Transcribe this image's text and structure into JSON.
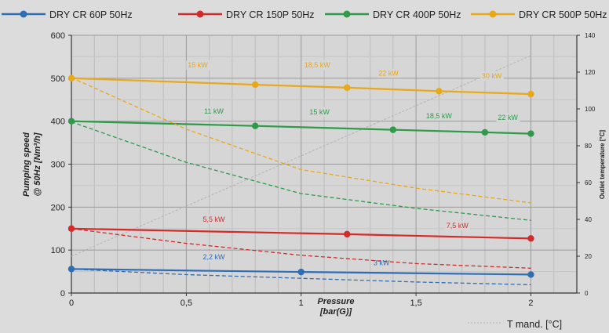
{
  "chart_data": {
    "type": "line",
    "title": "",
    "xlabel_line1": "Pressure",
    "xlabel_line2": "[bar(G)]",
    "ylabel_line1": "Pumping speed",
    "ylabel_line2": "@ 50Hz [Nm³/h]",
    "y2label": "Outlet temperature [°C]",
    "xlim": [
      0,
      2.2
    ],
    "ylim": [
      0,
      600
    ],
    "y2lim": [
      0,
      140
    ],
    "x_ticks": [
      0,
      0.5,
      1,
      1.5,
      2
    ],
    "x_tick_labels": [
      "0",
      "0,5",
      "1",
      "1,5",
      "2"
    ],
    "y_ticks": [
      0,
      100,
      200,
      300,
      400,
      500,
      600
    ],
    "y_tick_labels": [
      "0",
      "100",
      "200",
      "300",
      "400",
      "500",
      "600"
    ],
    "y2_ticks": [
      0,
      20,
      40,
      60,
      80,
      100,
      120,
      140
    ],
    "y2_tick_labels": [
      "0",
      "20",
      "40",
      "60",
      "80",
      "100",
      "120",
      "140"
    ],
    "grid": true,
    "legend_position": "top",
    "series": [
      {
        "name": "DRY CR 60P 50Hz",
        "color": "#2f6db5",
        "marker_points": [
          [
            0,
            56
          ],
          [
            1,
            49
          ],
          [
            2,
            43
          ]
        ],
        "temperature_curve": [
          [
            0,
            13
          ],
          [
            0.5,
            10
          ],
          [
            1,
            8
          ],
          [
            1.5,
            6
          ],
          [
            2,
            4.5
          ]
        ],
        "power_labels": [
          {
            "text": "2,2 kW",
            "x": 0.62,
            "y": 78
          },
          {
            "text": "3 kW",
            "x": 1.35,
            "y": 65
          }
        ]
      },
      {
        "name": "DRY CR 150P 50Hz",
        "color": "#d42a2a",
        "marker_points": [
          [
            0,
            150
          ],
          [
            1.2,
            137
          ],
          [
            2,
            127
          ]
        ],
        "temperature_curve": [
          [
            0,
            35
          ],
          [
            0.5,
            27
          ],
          [
            1,
            20.5
          ],
          [
            1.5,
            16
          ],
          [
            2,
            13.5
          ]
        ],
        "power_labels": [
          {
            "text": "5,5 kW",
            "x": 0.62,
            "y": 166
          },
          {
            "text": "7,5 kW",
            "x": 1.68,
            "y": 151
          }
        ]
      },
      {
        "name": "DRY CR 400P 50Hz",
        "color": "#2e9a4a",
        "marker_points": [
          [
            0,
            400
          ],
          [
            0.8,
            389
          ],
          [
            1.4,
            380
          ],
          [
            1.8,
            374
          ],
          [
            2,
            371
          ]
        ],
        "temperature_curve": [
          [
            0,
            93
          ],
          [
            0.5,
            71
          ],
          [
            1,
            54
          ],
          [
            1.5,
            46
          ],
          [
            2,
            39.5
          ]
        ],
        "power_labels": [
          {
            "text": "11 kW",
            "x": 0.62,
            "y": 418
          },
          {
            "text": "15 kW",
            "x": 1.08,
            "y": 416
          },
          {
            "text": "18,5 kW",
            "x": 1.6,
            "y": 407
          },
          {
            "text": "22 kW",
            "x": 1.9,
            "y": 403
          }
        ]
      },
      {
        "name": "DRY CR 500P 50Hz",
        "color": "#e8a818",
        "marker_points": [
          [
            0,
            500
          ],
          [
            0.8,
            485
          ],
          [
            1.2,
            478
          ],
          [
            1.6,
            470
          ],
          [
            2,
            463
          ]
        ],
        "temperature_curve": [
          [
            0,
            117
          ],
          [
            0.5,
            89
          ],
          [
            1,
            67
          ],
          [
            1.5,
            57
          ],
          [
            2,
            49
          ]
        ],
        "power_labels": [
          {
            "text": "15 kW",
            "x": 0.55,
            "y": 525
          },
          {
            "text": "18,5 kW",
            "x": 1.07,
            "y": 525
          },
          {
            "text": "22 kW",
            "x": 1.38,
            "y": 506
          },
          {
            "text": "30 kW",
            "x": 1.83,
            "y": 500
          }
        ]
      }
    ],
    "t_mand": {
      "name": "T mand. [°C]",
      "color": "#b4b4b4",
      "points": [
        [
          0,
          20
        ],
        [
          2,
          129
        ]
      ]
    }
  }
}
